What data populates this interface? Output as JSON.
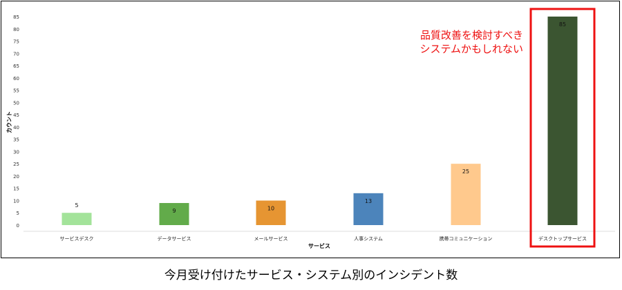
{
  "chart_data": {
    "type": "bar",
    "title": "",
    "xlabel": "サービス",
    "ylabel": "カウント",
    "ylim": [
      0,
      85
    ],
    "yticks": [
      0,
      5,
      10,
      15,
      20,
      25,
      30,
      35,
      40,
      45,
      50,
      55,
      60,
      65,
      70,
      75,
      80,
      85
    ],
    "categories": [
      "サービスデスク",
      "データサービス",
      "メールサービス",
      "人事システム",
      "携帯コミュニケーション",
      "デスクトップサービス"
    ],
    "values": [
      5,
      9,
      10,
      13,
      25,
      85
    ],
    "colors": [
      "#a3e39a",
      "#62ab4a",
      "#e69532",
      "#4c84bb",
      "#ffc98d",
      "#3b5531"
    ],
    "grid": false,
    "legend": "none",
    "highlight": {
      "category": "デスクトップサービス",
      "border_color": "#ee1111"
    },
    "annotation": {
      "lines": [
        "品質改善を検討すべき",
        "システムかもしれない"
      ],
      "color": "#ee1111"
    }
  },
  "caption": "今月受け付けたサービス・システム別のインシデント数"
}
